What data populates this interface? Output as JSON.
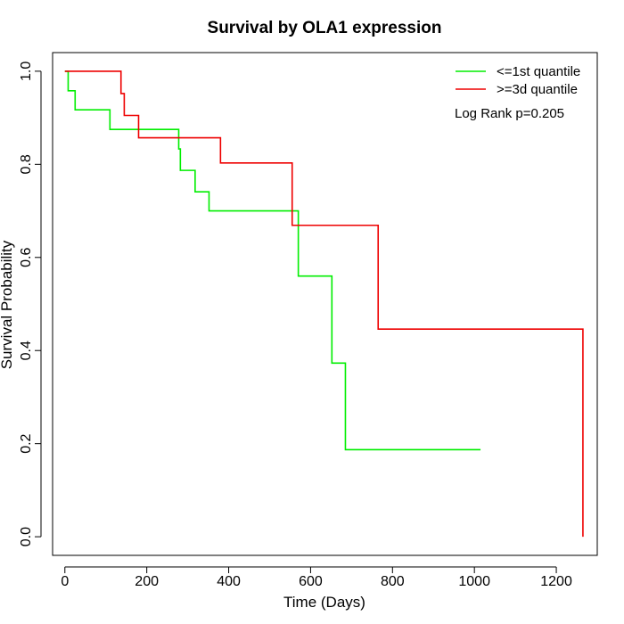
{
  "chart_data": {
    "type": "line",
    "title": "Survival by OLA1 expression",
    "xlabel": "Time (Days)",
    "ylabel": "Survival Probability",
    "xlim": [
      -30,
      1300
    ],
    "ylim": [
      -0.04,
      1.04
    ],
    "xticks": [
      0,
      200,
      400,
      600,
      800,
      1000,
      1200
    ],
    "yticks": [
      0.0,
      0.2,
      0.4,
      0.6,
      0.8,
      1.0
    ],
    "xtick_labels": [
      "0",
      "200",
      "400",
      "600",
      "800",
      "1000",
      "1200"
    ],
    "ytick_labels": [
      "0.0",
      "0.2",
      "0.4",
      "0.6",
      "0.8",
      "1.0"
    ],
    "grid": false,
    "legend_position": "top-right",
    "annotation": "Log Rank p=0.205",
    "series": [
      {
        "name": "<=1st quantile",
        "color": "#00ee00",
        "points": [
          [
            0,
            1.0
          ],
          [
            8,
            1.0
          ],
          [
            8,
            0.958
          ],
          [
            25,
            0.958
          ],
          [
            25,
            0.917
          ],
          [
            110,
            0.917
          ],
          [
            110,
            0.875
          ],
          [
            278,
            0.875
          ],
          [
            278,
            0.833
          ],
          [
            282,
            0.833
          ],
          [
            282,
            0.787
          ],
          [
            318,
            0.787
          ],
          [
            318,
            0.741
          ],
          [
            352,
            0.741
          ],
          [
            352,
            0.7
          ],
          [
            570,
            0.7
          ],
          [
            570,
            0.56
          ],
          [
            652,
            0.56
          ],
          [
            652,
            0.373
          ],
          [
            685,
            0.373
          ],
          [
            685,
            0.187
          ],
          [
            1015,
            0.187
          ]
        ]
      },
      {
        "name": ">=3d quantile",
        "color": "#ee0000",
        "points": [
          [
            0,
            1.0
          ],
          [
            137,
            1.0
          ],
          [
            137,
            0.952
          ],
          [
            145,
            0.952
          ],
          [
            145,
            0.905
          ],
          [
            180,
            0.905
          ],
          [
            180,
            0.857
          ],
          [
            380,
            0.857
          ],
          [
            380,
            0.803
          ],
          [
            555,
            0.803
          ],
          [
            555,
            0.669
          ],
          [
            765,
            0.669
          ],
          [
            765,
            0.446
          ],
          [
            1265,
            0.446
          ],
          [
            1265,
            0.0
          ]
        ]
      }
    ]
  }
}
